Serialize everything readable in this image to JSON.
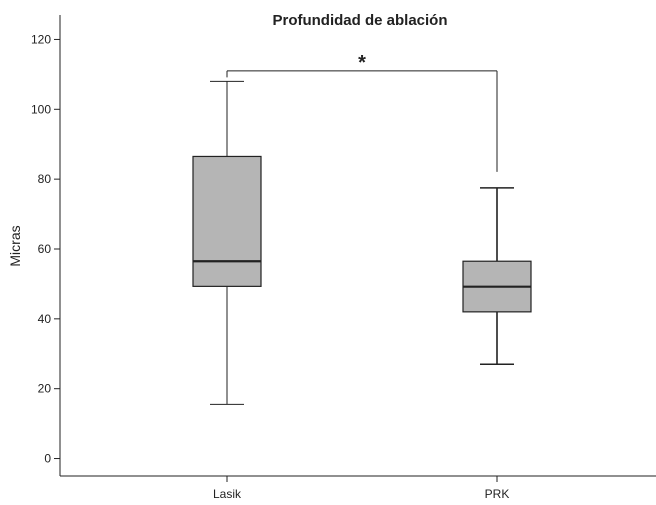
{
  "chart_data": {
    "type": "boxplot",
    "title": "Profundidad de ablación",
    "xlabel": "",
    "ylabel": "Micras",
    "ylim": [
      -5,
      127
    ],
    "yticks": [
      0,
      20,
      40,
      60,
      80,
      100,
      120
    ],
    "ytick_labels": [
      "0",
      "20",
      "40",
      "60",
      "80",
      "100",
      "120"
    ],
    "grid": false,
    "legend": "none",
    "categories": [
      "Lasik",
      "PRK"
    ],
    "boxes": [
      {
        "category": "Lasik",
        "whisker_low": 15.5,
        "q1": 49.3,
        "median": 56.5,
        "q3": 86.5,
        "whisker_high": 108
      },
      {
        "category": "PRK",
        "whisker_low": 27,
        "q1": 42,
        "median": 49.2,
        "q3": 56.5,
        "whisker_high": 77.5
      }
    ],
    "significance": {
      "between": [
        "Lasik",
        "PRK"
      ],
      "label": "*",
      "y": 111
    },
    "colors": {
      "box_fill": "#b5b5b5",
      "stroke": "#222222",
      "background": "#ffffff"
    }
  }
}
